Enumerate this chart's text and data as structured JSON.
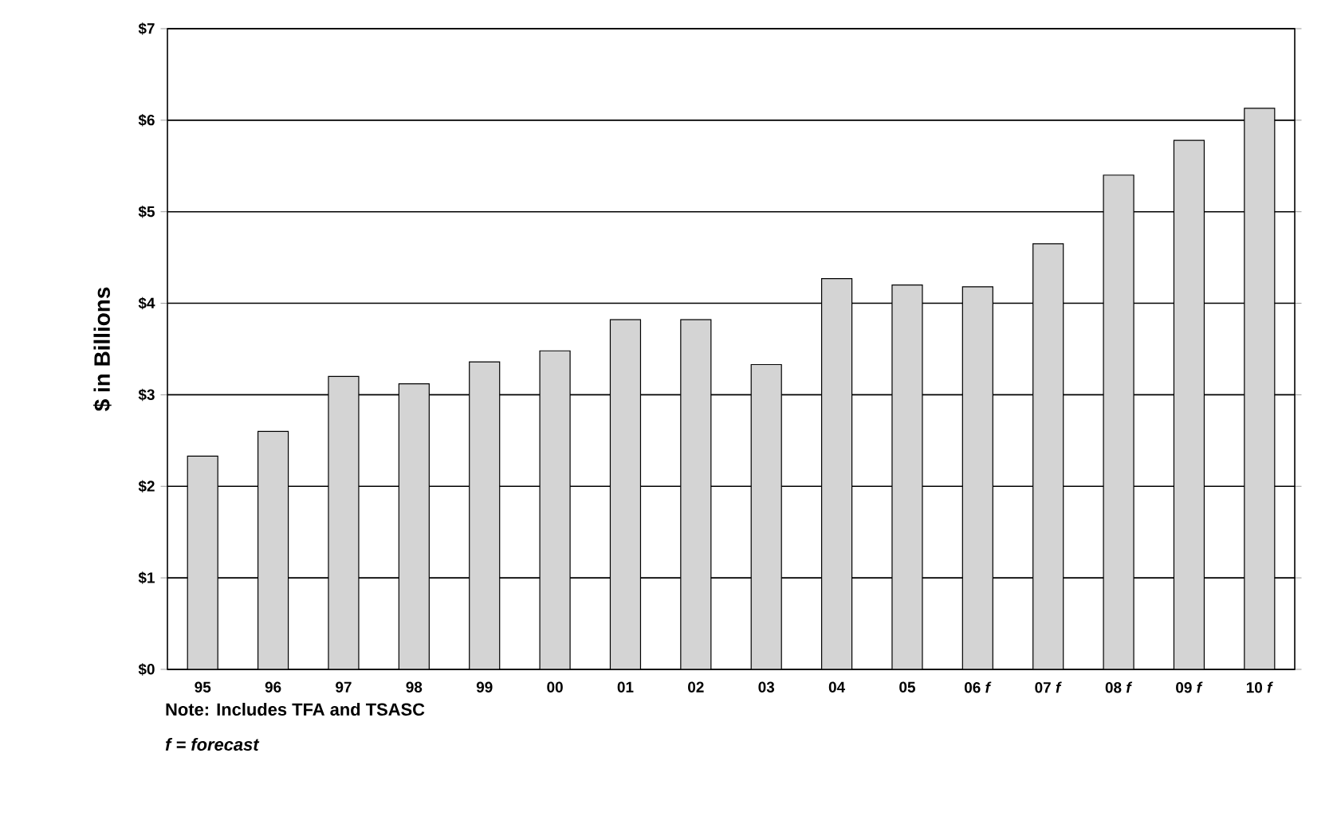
{
  "chart_data": {
    "type": "bar",
    "ylabel": "$ in Billions",
    "categories": [
      "95",
      "96",
      "97",
      "98",
      "99",
      "00",
      "01",
      "02",
      "03",
      "04",
      "05",
      "06 *f*",
      "07 *f*",
      "08 *f*",
      "09 *f*",
      "10 *f*"
    ],
    "values": [
      2.33,
      2.6,
      3.2,
      3.12,
      3.36,
      3.48,
      3.82,
      3.82,
      3.33,
      4.27,
      4.2,
      4.18,
      4.65,
      5.4,
      5.78,
      6.13
    ],
    "color": "#d4d4d4",
    "ylim": [
      0,
      7
    ],
    "yticks": [
      {
        "value": 0,
        "label": "$0"
      },
      {
        "value": 1,
        "label": "$1"
      },
      {
        "value": 2,
        "label": "$2"
      },
      {
        "value": 3,
        "label": "$3"
      },
      {
        "value": 4,
        "label": "$4"
      },
      {
        "value": 5,
        "label": "$5"
      },
      {
        "value": 6,
        "label": "$6"
      },
      {
        "value": 7,
        "label": "$7"
      }
    ],
    "grid": "y",
    "annotations": [
      "Note: Includes TFA and TSASC",
      "*f = forecast*"
    ]
  }
}
